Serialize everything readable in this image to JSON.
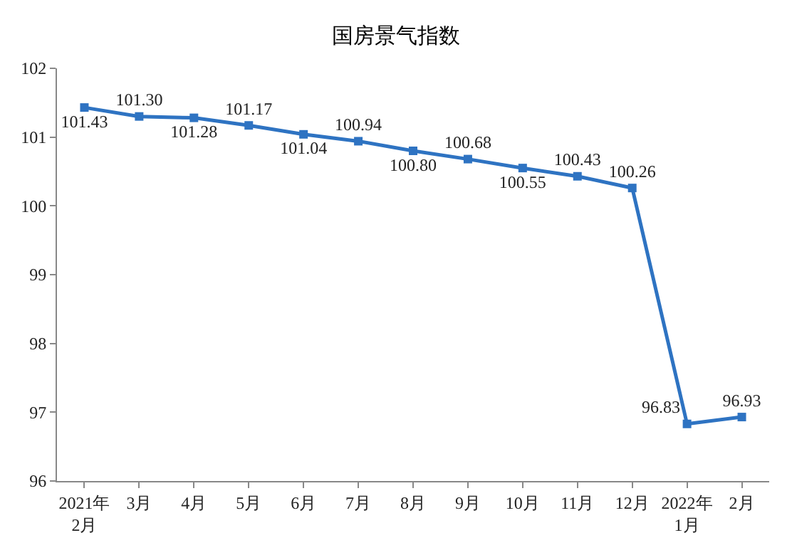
{
  "chart_data": {
    "type": "line",
    "title": "国房景气指数",
    "categories": [
      "2021年\n2月",
      "3月",
      "4月",
      "5月",
      "6月",
      "7月",
      "8月",
      "9月",
      "10月",
      "11月",
      "12月",
      "2022年\n1月",
      "2月"
    ],
    "series": [
      {
        "color": "#2e73c2",
        "values": [
          101.43,
          101.3,
          101.28,
          101.17,
          101.04,
          100.94,
          100.8,
          100.68,
          100.55,
          100.43,
          100.26,
          96.83,
          96.93
        ],
        "value_labels": [
          "101.43",
          "101.30",
          "101.28",
          "101.17",
          "101.04",
          "100.94",
          "100.80",
          "100.68",
          "100.55",
          "100.43",
          "100.26",
          "96.83",
          "96.93"
        ]
      }
    ],
    "ylim": [
      96,
      102
    ],
    "yticks": [
      96,
      97,
      98,
      99,
      100,
      101,
      102
    ],
    "marker": "square",
    "line_style": "solid"
  }
}
